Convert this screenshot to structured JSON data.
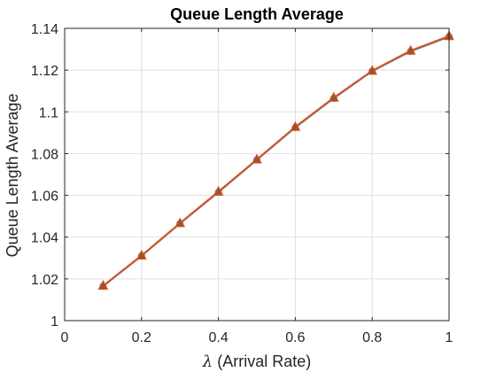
{
  "chart_data": {
    "type": "line",
    "title": "Queue Length Average",
    "xlabel_symbol": "λ",
    "xlabel_text": " (Arrival Rate)",
    "ylabel": "Queue Length Average",
    "xlim": [
      0,
      1
    ],
    "ylim": [
      1,
      1.14
    ],
    "xticks": [
      0,
      0.2,
      0.4,
      0.6,
      0.8,
      1
    ],
    "xtick_labels": [
      "0",
      "0.2",
      "0.4",
      "0.6",
      "0.8",
      "1"
    ],
    "yticks": [
      1,
      1.02,
      1.04,
      1.06,
      1.08,
      1.1,
      1.12,
      1.14
    ],
    "ytick_labels": [
      "1",
      "1.02",
      "1.04",
      "1.06",
      "1.08",
      "1.1",
      "1.12",
      "1.14"
    ],
    "grid": true,
    "series": [
      {
        "color": "#4a7ec2",
        "marker": "circle",
        "x": [
          0.1,
          0.2,
          0.3,
          0.4,
          0.5,
          0.6,
          0.7,
          0.8,
          0.9,
          1.0
        ],
        "y": [
          1.0165,
          1.031,
          1.0465,
          1.0615,
          1.077,
          1.0925,
          1.1065,
          1.1195,
          1.129,
          1.136
        ]
      },
      {
        "color": "#d9541a",
        "marker": "triangle",
        "x": [
          0.1,
          0.2,
          0.3,
          0.4,
          0.5,
          0.6,
          0.7,
          0.8,
          0.9,
          1.0
        ],
        "y": [
          1.0167,
          1.0312,
          1.0467,
          1.0618,
          1.0772,
          1.0928,
          1.1068,
          1.1197,
          1.1293,
          1.1363
        ]
      }
    ]
  }
}
